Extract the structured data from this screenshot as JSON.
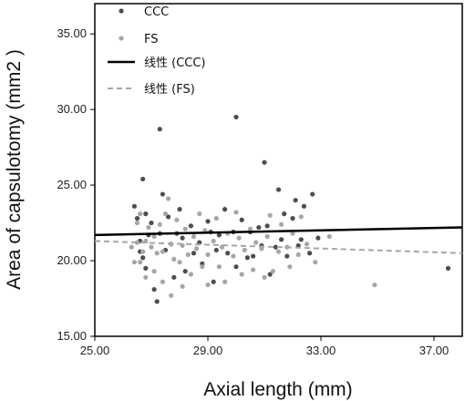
{
  "chart_data": {
    "type": "scatter",
    "title": "",
    "xlabel": "Axial length (mm)",
    "ylabel": "Area of capsulotomy (mm2 )",
    "xlim": [
      25,
      38
    ],
    "ylim": [
      15,
      37
    ],
    "xticks": [
      "25.00",
      "29.00",
      "33.00",
      "37.00"
    ],
    "yticks": [
      "15.00",
      "20.00",
      "25.00",
      "30.00",
      "35.00"
    ],
    "grid": false,
    "legend_position": "top-left",
    "legend": [
      "CCC",
      "FS",
      "线性 (CCC)",
      "线性 (FS)"
    ],
    "series": [
      {
        "name": "CCC",
        "kind": "points",
        "color": "#4d4d4d",
        "points": [
          [
            26.4,
            23.6
          ],
          [
            26.5,
            22.8
          ],
          [
            26.6,
            20.6
          ],
          [
            26.6,
            21.3
          ],
          [
            26.7,
            25.4
          ],
          [
            26.7,
            20.2
          ],
          [
            26.8,
            19.5
          ],
          [
            26.8,
            23.1
          ],
          [
            26.9,
            21.7
          ],
          [
            27.0,
            22.5
          ],
          [
            27.1,
            18.1
          ],
          [
            27.2,
            17.3
          ],
          [
            27.3,
            28.7
          ],
          [
            27.3,
            21.8
          ],
          [
            27.4,
            24.4
          ],
          [
            27.5,
            20.7
          ],
          [
            27.6,
            22.9
          ],
          [
            27.7,
            21.1
          ],
          [
            27.8,
            18.9
          ],
          [
            27.9,
            21.8
          ],
          [
            28.0,
            23.4
          ],
          [
            28.1,
            21.5
          ],
          [
            28.2,
            19.3
          ],
          [
            28.4,
            22.3
          ],
          [
            28.5,
            20.5
          ],
          [
            28.7,
            21.2
          ],
          [
            28.8,
            19.8
          ],
          [
            29.0,
            22.6
          ],
          [
            29.1,
            21.9
          ],
          [
            29.2,
            18.6
          ],
          [
            29.3,
            20.7
          ],
          [
            29.4,
            21.7
          ],
          [
            29.6,
            23.4
          ],
          [
            29.7,
            20.5
          ],
          [
            29.9,
            21.9
          ],
          [
            30.0,
            29.5
          ],
          [
            30.0,
            19.6
          ],
          [
            30.2,
            22.7
          ],
          [
            30.4,
            20.2
          ],
          [
            30.5,
            21.9
          ],
          [
            30.6,
            20.3
          ],
          [
            30.8,
            22.2
          ],
          [
            30.9,
            21.0
          ],
          [
            31.0,
            26.5
          ],
          [
            31.1,
            22.3
          ],
          [
            31.2,
            19.1
          ],
          [
            31.4,
            20.9
          ],
          [
            31.5,
            24.7
          ],
          [
            31.6,
            21.4
          ],
          [
            31.7,
            23.1
          ],
          [
            31.8,
            20.3
          ],
          [
            32.0,
            22.8
          ],
          [
            32.1,
            24.0
          ],
          [
            32.2,
            21.0
          ],
          [
            32.3,
            21.4
          ],
          [
            32.4,
            23.6
          ],
          [
            32.6,
            20.5
          ],
          [
            32.7,
            24.4
          ],
          [
            32.9,
            21.5
          ],
          [
            37.5,
            19.5
          ]
        ]
      },
      {
        "name": "FS",
        "kind": "points",
        "color": "#a6a6a6",
        "points": [
          [
            26.3,
            20.9
          ],
          [
            26.4,
            19.9
          ],
          [
            26.5,
            22.5
          ],
          [
            26.5,
            21.2
          ],
          [
            26.6,
            19.9
          ],
          [
            26.6,
            23.1
          ],
          [
            26.7,
            20.6
          ],
          [
            26.8,
            21.3
          ],
          [
            26.8,
            18.9
          ],
          [
            26.9,
            22.2
          ],
          [
            27.0,
            20.9
          ],
          [
            27.1,
            19.3
          ],
          [
            27.1,
            21.6
          ],
          [
            27.2,
            20.5
          ],
          [
            27.3,
            22.4
          ],
          [
            27.4,
            18.6
          ],
          [
            27.4,
            20.6
          ],
          [
            27.5,
            23.1
          ],
          [
            27.6,
            24.1
          ],
          [
            27.7,
            17.7
          ],
          [
            27.7,
            21.1
          ],
          [
            27.8,
            20.1
          ],
          [
            27.9,
            22.7
          ],
          [
            28.0,
            19.9
          ],
          [
            28.1,
            21.0
          ],
          [
            28.1,
            18.3
          ],
          [
            28.2,
            22.1
          ],
          [
            28.3,
            20.4
          ],
          [
            28.4,
            19.1
          ],
          [
            28.5,
            21.6
          ],
          [
            28.6,
            20.8
          ],
          [
            28.7,
            23.1
          ],
          [
            28.8,
            19.6
          ],
          [
            28.9,
            22.0
          ],
          [
            29.0,
            20.4
          ],
          [
            29.0,
            18.4
          ],
          [
            29.2,
            21.3
          ],
          [
            29.3,
            22.8
          ],
          [
            29.4,
            19.6
          ],
          [
            29.5,
            20.9
          ],
          [
            29.6,
            18.6
          ],
          [
            29.7,
            21.8
          ],
          [
            29.9,
            20.3
          ],
          [
            30.0,
            23.2
          ],
          [
            30.1,
            21.5
          ],
          [
            30.2,
            19.1
          ],
          [
            30.3,
            20.7
          ],
          [
            30.5,
            22.1
          ],
          [
            30.6,
            19.4
          ],
          [
            30.7,
            21.2
          ],
          [
            30.9,
            20.8
          ],
          [
            31.0,
            18.9
          ],
          [
            31.1,
            21.6
          ],
          [
            31.2,
            23.0
          ],
          [
            31.3,
            19.3
          ],
          [
            31.5,
            20.6
          ],
          [
            31.6,
            22.4
          ],
          [
            31.8,
            20.9
          ],
          [
            31.9,
            19.6
          ],
          [
            32.0,
            21.8
          ],
          [
            32.2,
            20.4
          ],
          [
            32.3,
            22.9
          ],
          [
            32.5,
            21.1
          ],
          [
            32.8,
            19.9
          ],
          [
            33.3,
            21.6
          ],
          [
            34.9,
            18.4
          ]
        ]
      },
      {
        "name": "线性 (CCC)",
        "kind": "trendline",
        "color": "#000000",
        "dash": false,
        "points": [
          [
            25,
            21.7
          ],
          [
            38,
            22.2
          ]
        ]
      },
      {
        "name": "线性 (FS)",
        "kind": "trendline",
        "color": "#a6a6a6",
        "dash": true,
        "points": [
          [
            25,
            21.3
          ],
          [
            38,
            20.5
          ]
        ]
      }
    ]
  }
}
